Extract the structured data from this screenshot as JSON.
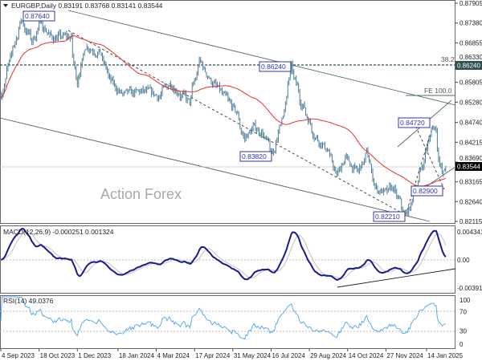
{
  "chart_data": [
    {
      "type": "line",
      "title": "EURGBP,Daily  0.83191 0.83768 0.83141 0.83544",
      "symbol": "EURGBP",
      "timeframe": "Daily",
      "ohlc_last": {
        "open": 0.83191,
        "high": 0.83768,
        "low": 0.83141,
        "close": 0.83544
      },
      "watermark": "Action Forex",
      "ylim": [
        0.82115,
        0.87905
      ],
      "y_ticks": [
        "0.87905",
        "0.87380",
        "0.86855",
        "0.86330",
        "0.85805",
        "0.85280",
        "0.84740",
        "0.84215",
        "0.83690",
        "0.83165",
        "0.82640",
        "0.82115"
      ],
      "x_ticks": [
        {
          "date": "2023-09-04",
          "label": "4 Sep 2023"
        },
        {
          "date": "2023-10-18",
          "label": "18 Oct 2023"
        },
        {
          "date": "2023-12-01",
          "label": "1 Dec 2023"
        },
        {
          "date": "2024-01-18",
          "label": "18 Jan 2024"
        },
        {
          "date": "2024-03-04",
          "label": "4 Mar 2024"
        },
        {
          "date": "2024-04-17",
          "label": "17 Apr 2024"
        },
        {
          "date": "2024-05-31",
          "label": "31 May 2024"
        },
        {
          "date": "2024-07-16",
          "label": "16 Jul 2024"
        },
        {
          "date": "2024-08-29",
          "label": "29 Aug 2024"
        },
        {
          "date": "2024-10-14",
          "label": "14 Oct 2024"
        },
        {
          "date": "2024-11-27",
          "label": "27 Nov 2024"
        },
        {
          "date": "2025-01-14",
          "label": "14 Jan 2025"
        }
      ],
      "price_keypoints": [
        [
          "2023-09-04",
          0.855
        ],
        [
          "2023-09-20",
          0.869
        ],
        [
          "2023-09-27",
          0.8745
        ],
        [
          "2023-10-10",
          0.869
        ],
        [
          "2023-10-20",
          0.874
        ],
        [
          "2023-11-01",
          0.87
        ],
        [
          "2023-11-24",
          0.87
        ],
        [
          "2023-12-01",
          0.858
        ],
        [
          "2023-12-12",
          0.868
        ],
        [
          "2023-12-28",
          0.866
        ],
        [
          "2024-01-10",
          0.858
        ],
        [
          "2024-01-25",
          0.8545
        ],
        [
          "2024-02-15",
          0.8555
        ],
        [
          "2024-03-07",
          0.8545
        ],
        [
          "2024-03-20",
          0.858
        ],
        [
          "2024-04-11",
          0.8525
        ],
        [
          "2024-04-23",
          0.8635
        ],
        [
          "2024-05-05",
          0.859
        ],
        [
          "2024-05-20",
          0.8545
        ],
        [
          "2024-06-05",
          0.85
        ],
        [
          "2024-06-14",
          0.843
        ],
        [
          "2024-06-25",
          0.846
        ],
        [
          "2024-07-05",
          0.845
        ],
        [
          "2024-07-17",
          0.8385
        ],
        [
          "2024-08-01",
          0.852
        ],
        [
          "2024-08-08",
          0.8615
        ],
        [
          "2024-08-20",
          0.853
        ],
        [
          "2024-09-05",
          0.844
        ],
        [
          "2024-09-20",
          0.84
        ],
        [
          "2024-09-30",
          0.833
        ],
        [
          "2024-10-10",
          0.838
        ],
        [
          "2024-10-25",
          0.834
        ],
        [
          "2024-11-05",
          0.839
        ],
        [
          "2024-11-15",
          0.83
        ],
        [
          "2024-11-28",
          0.8285
        ],
        [
          "2024-12-05",
          0.83
        ],
        [
          "2024-12-19",
          0.8228
        ],
        [
          "2024-12-24",
          0.824
        ],
        [
          "2025-01-05",
          0.833
        ],
        [
          "2025-01-20",
          0.846
        ],
        [
          "2025-01-24",
          0.8462
        ],
        [
          "2025-02-01",
          0.8318
        ],
        [
          "2025-02-05",
          0.83544
        ]
      ],
      "annotations": {
        "swing_labels": [
          "0.87640",
          "0.86240",
          "0.83820",
          "0.84720",
          "0.82900",
          "0.82210"
        ],
        "fib_label": "38.2",
        "fe_label": "FE 100.0",
        "level_line": "0.86240",
        "current_price": "0.83544"
      },
      "moving_average_color": "#e8312f",
      "bar_color": "#4a7b96"
    },
    {
      "type": "line",
      "title": "MACD(12,26,9) -0.000251 0.001324",
      "ylim": [
        -0.003916,
        0.004341
      ],
      "y_ticks": [
        "0.004341",
        "0.00",
        "-0.003916"
      ],
      "series": [
        {
          "name": "MACD",
          "color": "#1a1a8f"
        },
        {
          "name": "Signal",
          "color": "#c0c0c0"
        }
      ]
    },
    {
      "type": "line",
      "title": "RSI(14) 49.0376",
      "ylim": [
        0,
        100
      ],
      "y_ticks": [
        "100",
        "70",
        "30",
        "0"
      ],
      "series": [
        {
          "name": "RSI",
          "color": "#4da3f0"
        }
      ]
    }
  ]
}
